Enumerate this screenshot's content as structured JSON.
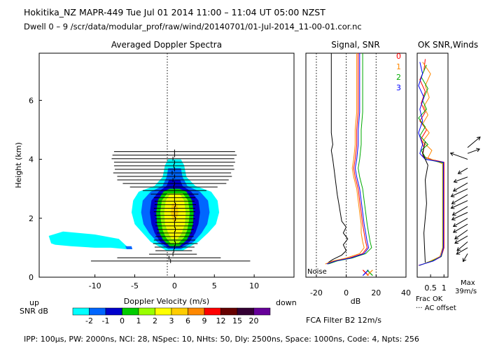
{
  "header": {
    "line1": "Hokitika_NZ   MAPR-449   Tue Jul 01 2014 11:00 – 11:04 UT 05:00 NZST",
    "line2": "Dwell   0 –   9     /scr/data/modular_prof/raw/wind/20140701/01-Jul-2014_11-00-01.cor.nc"
  },
  "footer": {
    "params": "IPP: 100µs,   PW: 2000ns,   NCI:  28,   NSpec: 10,  NHts: 50,   Dly: 2500ns,   Space: 1000ns,   Code: 4,   Npts: 256",
    "filter": "FCA Filter B2 12m/s"
  },
  "colors": {
    "background": "#ffffff",
    "axes": "#000000"
  },
  "chart_data": [
    {
      "type": "heatmap",
      "title": "Averaged Doppler Spectra",
      "xlabel": "Doppler Velocity (m/s)",
      "ylabel": "Height (km)",
      "xlim": [
        -17,
        15
      ],
      "ylim": [
        0,
        7.6
      ],
      "xticks": [
        -10,
        -5,
        0,
        5,
        10
      ],
      "yticks": [
        0,
        2,
        4,
        6
      ],
      "direction_left": "up",
      "direction_right": "down",
      "colorbar": {
        "label": "SNR dB",
        "ticks": [
          "-2",
          "-1",
          "0",
          "1",
          "2",
          "3",
          "6",
          "9",
          "12",
          "15",
          "20"
        ],
        "colors": [
          "#00ffff",
          "#0066ff",
          "#0000cc",
          "#00cc00",
          "#99ff00",
          "#ffff00",
          "#ffcc00",
          "#ff8800",
          "#ff0000",
          "#660000",
          "#330033",
          "#660099"
        ]
      },
      "peak_profile": [
        {
          "h": 0.55,
          "v": -0.5,
          "w": 10.0
        },
        {
          "h": 0.66,
          "v": -0.7,
          "w": 6.5
        },
        {
          "h": 0.78,
          "v": -0.2,
          "w": 3.0
        },
        {
          "h": 0.9,
          "v": -0.1,
          "w": 2.3
        },
        {
          "h": 1.02,
          "v": 0.0,
          "w": 2.5
        },
        {
          "h": 1.14,
          "v": 0.1,
          "w": 2.8
        },
        {
          "h": 1.26,
          "v": 0.0,
          "w": 2.6
        },
        {
          "h": 1.38,
          "v": 0.0,
          "w": 2.4
        },
        {
          "h": 1.5,
          "v": 0.0,
          "w": 2.2
        },
        {
          "h": 1.62,
          "v": 0.1,
          "w": 2.3
        },
        {
          "h": 1.74,
          "v": 0.0,
          "w": 2.4
        },
        {
          "h": 1.86,
          "v": 0.0,
          "w": 2.4
        },
        {
          "h": 1.98,
          "v": 0.1,
          "w": 2.5
        },
        {
          "h": 2.1,
          "v": 0.0,
          "w": 2.5
        },
        {
          "h": 2.22,
          "v": 0.0,
          "w": 2.6
        },
        {
          "h": 2.34,
          "v": 0.0,
          "w": 2.6
        },
        {
          "h": 2.46,
          "v": 0.1,
          "w": 2.6
        },
        {
          "h": 2.58,
          "v": 0.0,
          "w": 2.5
        },
        {
          "h": 2.7,
          "v": 0.0,
          "w": 2.6
        },
        {
          "h": 2.82,
          "v": 0.0,
          "w": 3.0
        },
        {
          "h": 2.94,
          "v": 0.0,
          "w": 4.0
        },
        {
          "h": 3.06,
          "v": -0.1,
          "w": 5.5
        },
        {
          "h": 3.18,
          "v": 0.0,
          "w": 6.5
        },
        {
          "h": 3.3,
          "v": -0.2,
          "w": 7.0
        },
        {
          "h": 3.42,
          "v": 0.0,
          "w": 7.2
        },
        {
          "h": 3.54,
          "v": -0.3,
          "w": 7.4
        },
        {
          "h": 3.66,
          "v": 0.0,
          "w": 7.5
        },
        {
          "h": 3.78,
          "v": -0.1,
          "w": 7.5
        },
        {
          "h": 3.9,
          "v": 0.0,
          "w": 7.6
        },
        {
          "h": 4.02,
          "v": -0.2,
          "w": 7.7
        },
        {
          "h": 4.14,
          "v": 0.0,
          "w": 7.8
        },
        {
          "h": 4.26,
          "v": 0.0,
          "w": 7.6
        }
      ]
    },
    {
      "type": "line",
      "title": "Signal, SNR",
      "xlabel": "dB",
      "xlim": [
        -27,
        40
      ],
      "xticks": [
        -20,
        0,
        20,
        40
      ],
      "ylim": [
        0,
        7.6
      ],
      "noise_label": "Noise",
      "noise_level": 13,
      "series": [
        {
          "color": "#000000",
          "points": [
            [
              -12,
              0.5
            ],
            [
              -9,
              0.6
            ],
            [
              -3,
              0.75
            ],
            [
              0,
              0.9
            ],
            [
              -2,
              1.1
            ],
            [
              1,
              1.3
            ],
            [
              -2,
              1.5
            ],
            [
              0,
              1.7
            ],
            [
              -3,
              1.9
            ],
            [
              -4,
              2.2
            ],
            [
              -5,
              2.5
            ],
            [
              -6,
              2.8
            ],
            [
              -7,
              3.2
            ],
            [
              -8,
              3.6
            ],
            [
              -9,
              4.0
            ],
            [
              -10,
              4.3
            ],
            [
              -9,
              4.5
            ],
            [
              -10,
              4.9
            ],
            [
              -10,
              5.4
            ],
            [
              -10,
              6.0
            ],
            [
              -10,
              6.8
            ],
            [
              -10,
              7.6
            ]
          ]
        },
        {
          "color": "#ff0000",
          "points": [
            [
              -13,
              0.45
            ],
            [
              -8,
              0.55
            ],
            [
              2,
              0.65
            ],
            [
              11,
              0.8
            ],
            [
              14,
              1.0
            ],
            [
              13,
              1.2
            ],
            [
              12,
              1.5
            ],
            [
              11,
              1.8
            ],
            [
              10,
              2.2
            ],
            [
              9,
              2.6
            ],
            [
              8,
              3.0
            ],
            [
              6,
              3.4
            ],
            [
              5,
              3.7
            ],
            [
              6,
              4.0
            ],
            [
              7,
              4.5
            ],
            [
              7,
              5.0
            ],
            [
              8,
              5.6
            ],
            [
              8,
              6.2
            ],
            [
              8,
              7.0
            ],
            [
              8,
              7.6
            ]
          ]
        },
        {
          "color": "#ff8800",
          "points": [
            [
              -14,
              0.45
            ],
            [
              -9,
              0.55
            ],
            [
              0,
              0.65
            ],
            [
              9,
              0.8
            ],
            [
              12,
              1.0
            ],
            [
              11,
              1.2
            ],
            [
              10,
              1.5
            ],
            [
              10,
              1.8
            ],
            [
              9,
              2.2
            ],
            [
              8,
              2.6
            ],
            [
              7,
              3.0
            ],
            [
              5,
              3.4
            ],
            [
              4,
              3.7
            ],
            [
              5,
              4.0
            ],
            [
              6,
              4.5
            ],
            [
              6,
              5.0
            ],
            [
              7,
              5.6
            ],
            [
              7,
              6.2
            ],
            [
              7,
              7.0
            ],
            [
              7,
              7.6
            ]
          ]
        },
        {
          "color": "#00aa00",
          "points": [
            [
              -12,
              0.45
            ],
            [
              -6,
              0.55
            ],
            [
              4,
              0.65
            ],
            [
              13,
              0.8
            ],
            [
              17,
              1.0
            ],
            [
              16,
              1.2
            ],
            [
              15,
              1.5
            ],
            [
              14,
              1.8
            ],
            [
              13,
              2.2
            ],
            [
              12,
              2.6
            ],
            [
              11,
              3.0
            ],
            [
              9,
              3.4
            ],
            [
              8,
              3.7
            ],
            [
              9,
              4.0
            ],
            [
              10,
              4.5
            ],
            [
              10,
              5.0
            ],
            [
              11,
              5.6
            ],
            [
              11,
              6.2
            ],
            [
              11,
              7.0
            ],
            [
              11,
              7.6
            ]
          ]
        },
        {
          "color": "#0000ff",
          "points": [
            [
              -13,
              0.45
            ],
            [
              -7,
              0.55
            ],
            [
              3,
              0.65
            ],
            [
              12,
              0.8
            ],
            [
              15,
              1.0
            ],
            [
              14,
              1.2
            ],
            [
              13,
              1.5
            ],
            [
              12,
              1.8
            ],
            [
              11,
              2.2
            ],
            [
              10,
              2.6
            ],
            [
              9,
              3.0
            ],
            [
              7,
              3.4
            ],
            [
              6,
              3.7
            ],
            [
              7,
              4.0
            ],
            [
              8,
              4.5
            ],
            [
              8,
              5.0
            ],
            [
              9,
              5.6
            ],
            [
              9,
              6.2
            ],
            [
              9,
              7.0
            ],
            [
              9,
              7.6
            ]
          ]
        }
      ]
    },
    {
      "type": "line",
      "title": "OK SNR,Winds",
      "xlabel": "Frac OK",
      "xticks": [
        "0.5",
        "1"
      ],
      "xlim": [
        0,
        1.15
      ],
      "ylim": [
        0,
        7.6
      ],
      "note": "··· AC offset",
      "legend": [
        "0",
        "1",
        "2",
        "3"
      ],
      "legend_colors": [
        "#ff0000",
        "#ff8800",
        "#00aa00",
        "#0000ff"
      ],
      "max_label": "Max",
      "max_value": "39m/s",
      "wind_barbs": [
        {
          "h": 4.4,
          "dir": -40,
          "len": 0.9
        },
        {
          "h": 4.2,
          "dir": -20,
          "len": 0.7
        },
        {
          "h": 4.0,
          "dir": 200,
          "len": 1.0
        },
        {
          "h": 3.7,
          "dir": 150,
          "len": 0.6
        },
        {
          "h": 3.4,
          "dir": 160,
          "len": 0.8
        },
        {
          "h": 3.2,
          "dir": 150,
          "len": 0.9
        },
        {
          "h": 3.0,
          "dir": 155,
          "len": 1.0
        },
        {
          "h": 2.8,
          "dir": 150,
          "len": 1.0
        },
        {
          "h": 2.6,
          "dir": 155,
          "len": 1.0
        },
        {
          "h": 2.4,
          "dir": 150,
          "len": 0.95
        },
        {
          "h": 2.2,
          "dir": 155,
          "len": 0.95
        },
        {
          "h": 2.0,
          "dir": 150,
          "len": 0.9
        },
        {
          "h": 1.8,
          "dir": 150,
          "len": 0.9
        },
        {
          "h": 1.6,
          "dir": 145,
          "len": 0.85
        },
        {
          "h": 1.4,
          "dir": 150,
          "len": 0.8
        },
        {
          "h": 1.2,
          "dir": 140,
          "len": 0.75
        },
        {
          "h": 1.0,
          "dir": 150,
          "len": 0.7
        },
        {
          "h": 0.8,
          "dir": 120,
          "len": 0.5
        }
      ]
    }
  ]
}
